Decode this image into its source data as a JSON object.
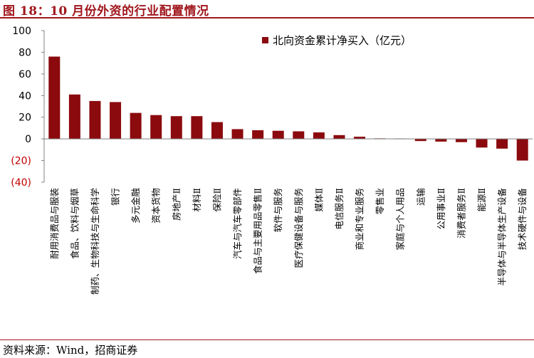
{
  "header": {
    "title": "图 18：10 月份外资的行业配置情况"
  },
  "source": {
    "text": "资料来源：Wind，招商证券"
  },
  "colors": {
    "bar": "#8b0a0e",
    "negative_tick": "#c00000",
    "positive_tick": "#000000",
    "axis": "#808080",
    "accent": "#a0171d"
  },
  "chart_data": {
    "type": "bar",
    "title": "",
    "xlabel": "",
    "ylabel": "",
    "ylim": [
      -40,
      100
    ],
    "yticks": [
      100,
      80,
      60,
      40,
      20,
      0,
      -20,
      -40
    ],
    "ytick_labels": [
      "100",
      "80",
      "60",
      "40",
      "20",
      "0",
      "(20)",
      "(40)"
    ],
    "grid": false,
    "legend": {
      "position": "top-right",
      "entries": [
        "北向资金累计净买入（亿元）"
      ]
    },
    "categories": [
      "耐用消费品与服装",
      "食品、饮料与烟草",
      "制药、生物科技与生命科学",
      "银行",
      "多元金融",
      "资本货物",
      "房地产Ⅱ",
      "材料Ⅱ",
      "保险Ⅱ",
      "汽车与汽车零部件",
      "食品与主要用品零售Ⅱ",
      "软件与服务",
      "医疗保健设备与服务",
      "媒体Ⅱ",
      "电信服务Ⅱ",
      "商业和专业服务",
      "零售业",
      "家庭与个人用品",
      "运输",
      "公用事业Ⅱ",
      "消费者服务Ⅱ",
      "能源Ⅱ",
      "半导体与半导体生产设备",
      "技术硬件与设备"
    ],
    "series": [
      {
        "name": "北向资金累计净买入（亿元）",
        "values": [
          76,
          41,
          35,
          34,
          24,
          22,
          21,
          21,
          15.5,
          9,
          8,
          7.5,
          7,
          6,
          3.5,
          2,
          0.5,
          0.3,
          -2,
          -2.5,
          -3,
          -8,
          -9,
          -20
        ]
      }
    ]
  }
}
